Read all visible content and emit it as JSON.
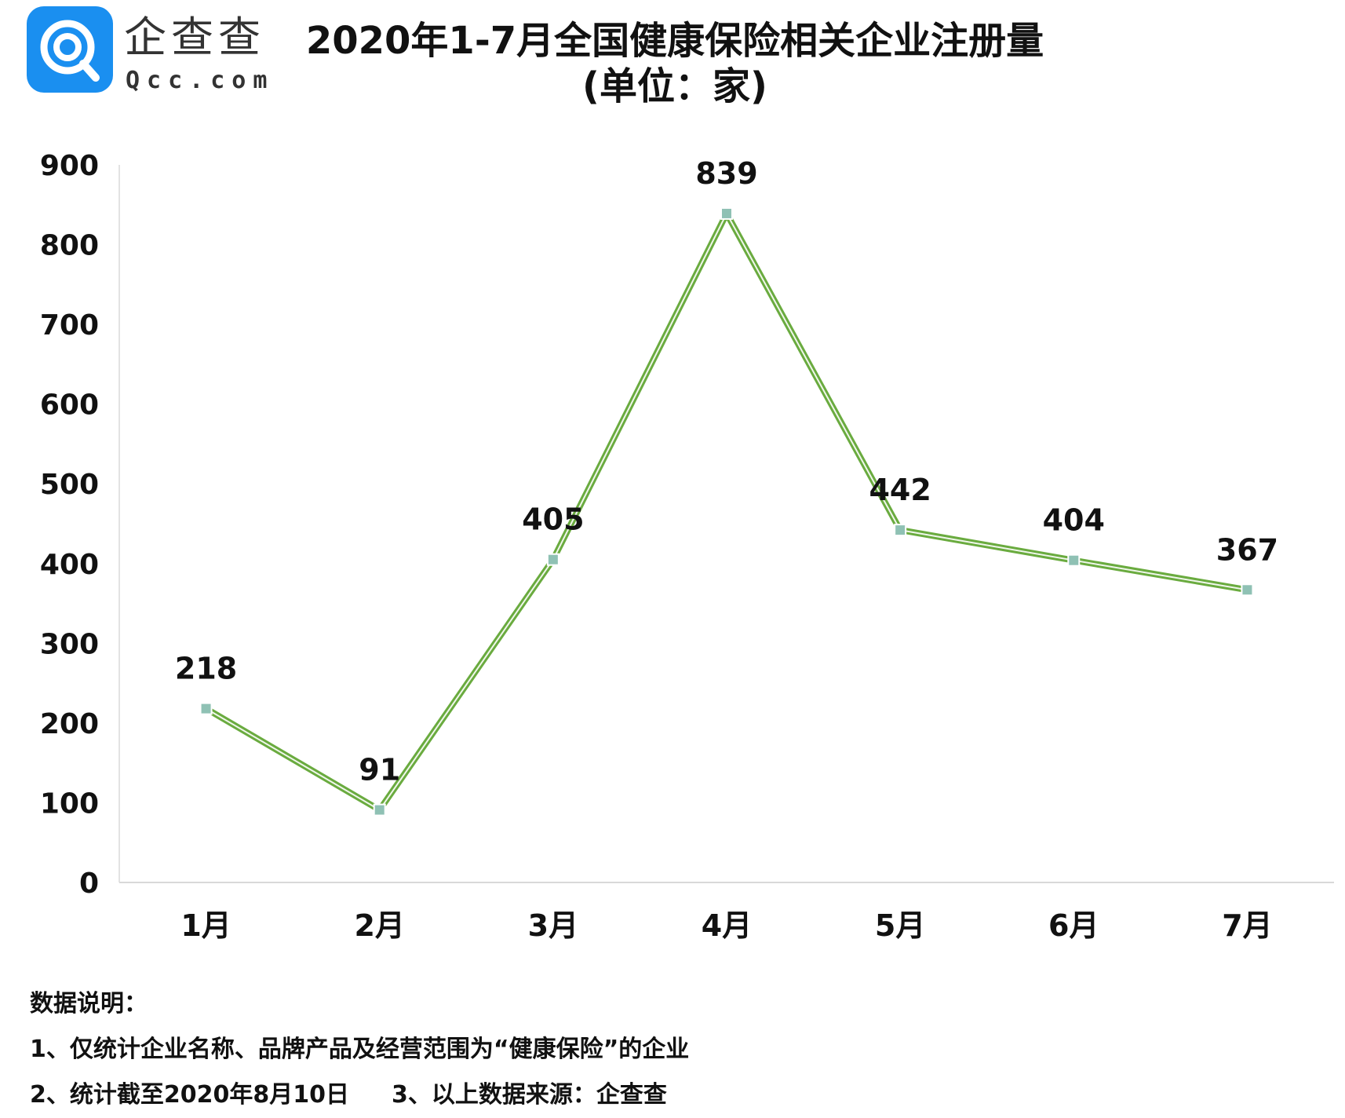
{
  "brand": {
    "name": "企查查",
    "domain": "Qcc.com",
    "color": "#1a8ff0"
  },
  "chart_data": {
    "type": "line",
    "title": "2020年1-7月全国健康保险相关企业注册量",
    "subtitle": "(单位：家)",
    "categories": [
      "1月",
      "2月",
      "3月",
      "4月",
      "5月",
      "6月",
      "7月"
    ],
    "series": [
      {
        "values": [
          218,
          91,
          405,
          839,
          442,
          404,
          367
        ],
        "color": "#6aab3f",
        "marker_color": "#8fc1b4"
      }
    ],
    "yticks": [
      "0",
      "100",
      "200",
      "300",
      "400",
      "500",
      "600",
      "700",
      "800",
      "900"
    ],
    "ylim": [
      0,
      900
    ],
    "grid": false,
    "legend": "none",
    "data_labels": true
  },
  "notes": {
    "heading": "数据说明：",
    "line1": "1、仅统计企业名称、品牌产品及经营范围为“健康保险”的企业",
    "line2a": "2、统计截至2020年8月10日",
    "line2b": "3、以上数据来源：企查查"
  }
}
